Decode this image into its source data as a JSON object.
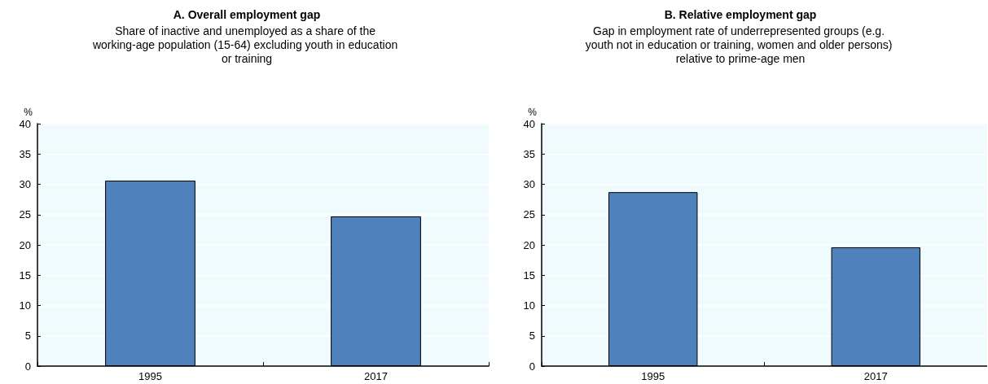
{
  "chart_data": [
    {
      "type": "bar",
      "title": "A. Overall employment gap",
      "subtitle": "Share of inactive and unemployed as a share of the working-age population (15-64) excluding youth in education or training",
      "ylabel": "%",
      "categories": [
        "1995",
        "2017"
      ],
      "values": [
        30.6,
        24.7
      ],
      "color": "#4f81bd",
      "ylim": [
        0,
        40
      ],
      "yticks": [
        0,
        5,
        10,
        15,
        20,
        25,
        30,
        35,
        40
      ],
      "grid": "y"
    },
    {
      "type": "bar",
      "title": "B. Relative employment gap",
      "subtitle": "Gap in employment rate of underrepresented groups (e.g. youth not in education or training, women and older persons) relative to prime-age men",
      "ylabel": "%",
      "categories": [
        "1995",
        "2017"
      ],
      "values": [
        28.7,
        19.6
      ],
      "color": "#4f81bd",
      "ylim": [
        0,
        40
      ],
      "yticks": [
        0,
        5,
        10,
        15,
        20,
        25,
        30,
        35,
        40
      ],
      "grid": "y"
    }
  ]
}
